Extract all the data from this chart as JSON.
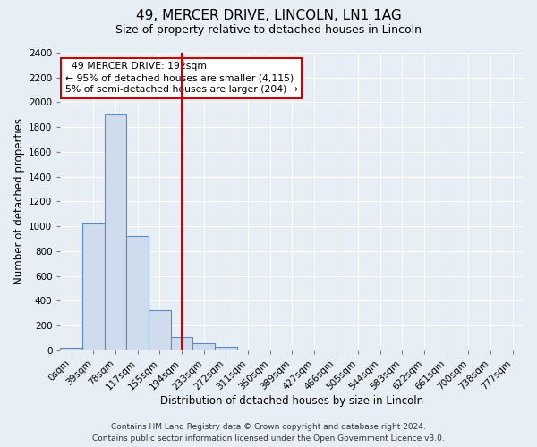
{
  "title": "49, MERCER DRIVE, LINCOLN, LN1 1AG",
  "subtitle": "Size of property relative to detached houses in Lincoln",
  "xlabel": "Distribution of detached houses by size in Lincoln",
  "ylabel": "Number of detached properties",
  "bar_labels": [
    "0sqm",
    "39sqm",
    "78sqm",
    "117sqm",
    "155sqm",
    "194sqm",
    "233sqm",
    "272sqm",
    "311sqm",
    "350sqm",
    "389sqm",
    "427sqm",
    "466sqm",
    "505sqm",
    "544sqm",
    "583sqm",
    "622sqm",
    "661sqm",
    "700sqm",
    "738sqm",
    "777sqm"
  ],
  "bar_values": [
    20,
    1025,
    1900,
    920,
    325,
    110,
    55,
    30,
    0,
    0,
    0,
    0,
    0,
    0,
    0,
    0,
    0,
    0,
    0,
    0,
    0
  ],
  "bar_color": "#cfdcee",
  "bar_edge_color": "#5b8ac4",
  "vline_x_index": 5,
  "vline_color": "#cc0000",
  "ylim": [
    0,
    2400
  ],
  "yticks": [
    0,
    200,
    400,
    600,
    800,
    1000,
    1200,
    1400,
    1600,
    1800,
    2000,
    2200,
    2400
  ],
  "annotation_title": "49 MERCER DRIVE: 192sqm",
  "annotation_line1": "← 95% of detached houses are smaller (4,115)",
  "annotation_line2": "5% of semi-detached houses are larger (204) →",
  "footer_line1": "Contains HM Land Registry data © Crown copyright and database right 2024.",
  "footer_line2": "Contains public sector information licensed under the Open Government Licence v3.0.",
  "background_color": "#e8eef5",
  "plot_bg_color": "#e8eef5",
  "title_fontsize": 11,
  "subtitle_fontsize": 9,
  "axis_label_fontsize": 8.5,
  "tick_fontsize": 7.5,
  "footer_fontsize": 6.5
}
